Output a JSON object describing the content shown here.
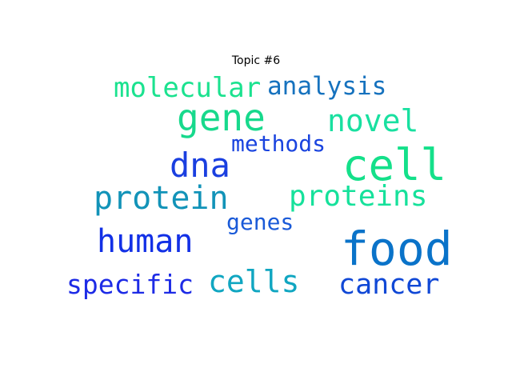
{
  "chart_data": {
    "type": "wordcloud",
    "title": "Topic #6",
    "words": [
      {
        "text": "food",
        "weight": 1.0,
        "color": "#0a73c9"
      },
      {
        "text": "cell",
        "weight": 0.95,
        "color": "#14e08a"
      },
      {
        "text": "gene",
        "weight": 0.78,
        "color": "#17d98c"
      },
      {
        "text": "protein",
        "weight": 0.72,
        "color": "#1293b8"
      },
      {
        "text": "dna",
        "weight": 0.7,
        "color": "#1a3fe0"
      },
      {
        "text": "human",
        "weight": 0.68,
        "color": "#1230e6"
      },
      {
        "text": "proteins",
        "weight": 0.64,
        "color": "#16e19b"
      },
      {
        "text": "novel",
        "weight": 0.62,
        "color": "#19e0a0"
      },
      {
        "text": "cells",
        "weight": 0.6,
        "color": "#10a6c1"
      },
      {
        "text": "cancer",
        "weight": 0.58,
        "color": "#1048d6"
      },
      {
        "text": "molecular",
        "weight": 0.56,
        "color": "#1be28f"
      },
      {
        "text": "specific",
        "weight": 0.55,
        "color": "#1d2be6"
      },
      {
        "text": "analysis",
        "weight": 0.52,
        "color": "#1672be"
      },
      {
        "text": "methods",
        "weight": 0.47,
        "color": "#1a44df"
      },
      {
        "text": "genes",
        "weight": 0.45,
        "color": "#1a5ad8"
      }
    ]
  }
}
